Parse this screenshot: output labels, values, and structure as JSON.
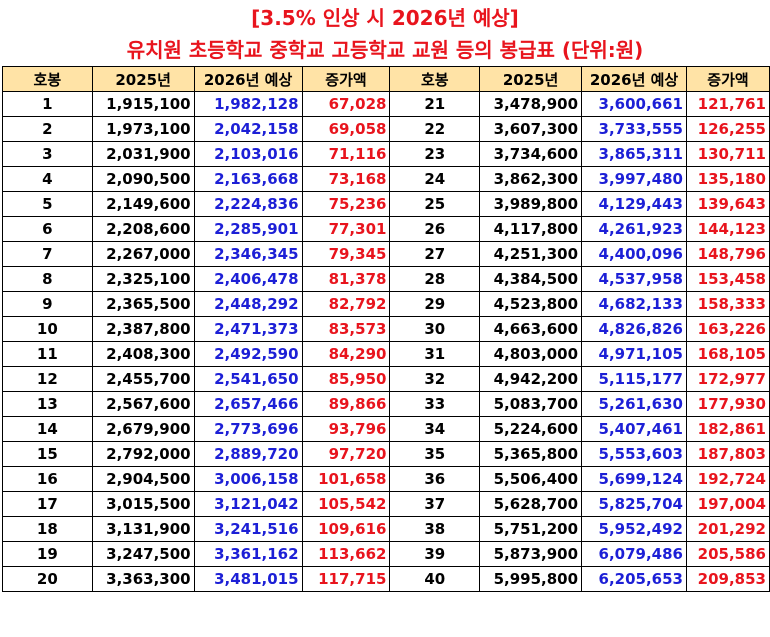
{
  "title_line1": "[3.5% 인상 시 2026년 예상]",
  "title_line2": "유치원 초등학교 중학교 고등학교 교원 등의 봉급표 (단위:원)",
  "headers": [
    "호봉",
    "2025년",
    "2026년 예상",
    "증가액",
    "호봉",
    "2025년",
    "2026년 예상",
    "증가액"
  ],
  "rows": [
    {
      "l": {
        "step": "1",
        "y2025": "1,915,100",
        "y2026": "1,982,128",
        "increase": "67,028"
      },
      "r": {
        "step": "21",
        "y2025": "3,478,900",
        "y2026": "3,600,661",
        "increase": "121,761"
      }
    },
    {
      "l": {
        "step": "2",
        "y2025": "1,973,100",
        "y2026": "2,042,158",
        "increase": "69,058"
      },
      "r": {
        "step": "22",
        "y2025": "3,607,300",
        "y2026": "3,733,555",
        "increase": "126,255"
      }
    },
    {
      "l": {
        "step": "3",
        "y2025": "2,031,900",
        "y2026": "2,103,016",
        "increase": "71,116"
      },
      "r": {
        "step": "23",
        "y2025": "3,734,600",
        "y2026": "3,865,311",
        "increase": "130,711"
      }
    },
    {
      "l": {
        "step": "4",
        "y2025": "2,090,500",
        "y2026": "2,163,668",
        "increase": "73,168"
      },
      "r": {
        "step": "24",
        "y2025": "3,862,300",
        "y2026": "3,997,480",
        "increase": "135,180"
      }
    },
    {
      "l": {
        "step": "5",
        "y2025": "2,149,600",
        "y2026": "2,224,836",
        "increase": "75,236"
      },
      "r": {
        "step": "25",
        "y2025": "3,989,800",
        "y2026": "4,129,443",
        "increase": "139,643"
      }
    },
    {
      "l": {
        "step": "6",
        "y2025": "2,208,600",
        "y2026": "2,285,901",
        "increase": "77,301"
      },
      "r": {
        "step": "26",
        "y2025": "4,117,800",
        "y2026": "4,261,923",
        "increase": "144,123"
      }
    },
    {
      "l": {
        "step": "7",
        "y2025": "2,267,000",
        "y2026": "2,346,345",
        "increase": "79,345"
      },
      "r": {
        "step": "27",
        "y2025": "4,251,300",
        "y2026": "4,400,096",
        "increase": "148,796"
      }
    },
    {
      "l": {
        "step": "8",
        "y2025": "2,325,100",
        "y2026": "2,406,478",
        "increase": "81,378"
      },
      "r": {
        "step": "28",
        "y2025": "4,384,500",
        "y2026": "4,537,958",
        "increase": "153,458"
      }
    },
    {
      "l": {
        "step": "9",
        "y2025": "2,365,500",
        "y2026": "2,448,292",
        "increase": "82,792"
      },
      "r": {
        "step": "29",
        "y2025": "4,523,800",
        "y2026": "4,682,133",
        "increase": "158,333"
      }
    },
    {
      "l": {
        "step": "10",
        "y2025": "2,387,800",
        "y2026": "2,471,373",
        "increase": "83,573"
      },
      "r": {
        "step": "30",
        "y2025": "4,663,600",
        "y2026": "4,826,826",
        "increase": "163,226"
      }
    },
    {
      "l": {
        "step": "11",
        "y2025": "2,408,300",
        "y2026": "2,492,590",
        "increase": "84,290"
      },
      "r": {
        "step": "31",
        "y2025": "4,803,000",
        "y2026": "4,971,105",
        "increase": "168,105"
      }
    },
    {
      "l": {
        "step": "12",
        "y2025": "2,455,700",
        "y2026": "2,541,650",
        "increase": "85,950"
      },
      "r": {
        "step": "32",
        "y2025": "4,942,200",
        "y2026": "5,115,177",
        "increase": "172,977"
      }
    },
    {
      "l": {
        "step": "13",
        "y2025": "2,567,600",
        "y2026": "2,657,466",
        "increase": "89,866"
      },
      "r": {
        "step": "33",
        "y2025": "5,083,700",
        "y2026": "5,261,630",
        "increase": "177,930"
      }
    },
    {
      "l": {
        "step": "14",
        "y2025": "2,679,900",
        "y2026": "2,773,696",
        "increase": "93,796"
      },
      "r": {
        "step": "34",
        "y2025": "5,224,600",
        "y2026": "5,407,461",
        "increase": "182,861"
      }
    },
    {
      "l": {
        "step": "15",
        "y2025": "2,792,000",
        "y2026": "2,889,720",
        "increase": "97,720"
      },
      "r": {
        "step": "35",
        "y2025": "5,365,800",
        "y2026": "5,553,603",
        "increase": "187,803"
      }
    },
    {
      "l": {
        "step": "16",
        "y2025": "2,904,500",
        "y2026": "3,006,158",
        "increase": "101,658"
      },
      "r": {
        "step": "36",
        "y2025": "5,506,400",
        "y2026": "5,699,124",
        "increase": "192,724"
      }
    },
    {
      "l": {
        "step": "17",
        "y2025": "3,015,500",
        "y2026": "3,121,042",
        "increase": "105,542"
      },
      "r": {
        "step": "37",
        "y2025": "5,628,700",
        "y2026": "5,825,704",
        "increase": "197,004"
      }
    },
    {
      "l": {
        "step": "18",
        "y2025": "3,131,900",
        "y2026": "3,241,516",
        "increase": "109,616"
      },
      "r": {
        "step": "38",
        "y2025": "5,751,200",
        "y2026": "5,952,492",
        "increase": "201,292"
      }
    },
    {
      "l": {
        "step": "19",
        "y2025": "3,247,500",
        "y2026": "3,361,162",
        "increase": "113,662"
      },
      "r": {
        "step": "39",
        "y2025": "5,873,900",
        "y2026": "6,079,486",
        "increase": "205,586"
      }
    },
    {
      "l": {
        "step": "20",
        "y2025": "3,363,300",
        "y2026": "3,481,015",
        "increase": "117,715"
      },
      "r": {
        "step": "40",
        "y2025": "5,995,800",
        "y2026": "6,205,653",
        "increase": "209,853"
      }
    }
  ],
  "colors": {
    "title": "#e8141d",
    "header_bg": "#ffe3a6",
    "y2026_text": "#1c1fd6",
    "increase_text": "#e8141d"
  }
}
